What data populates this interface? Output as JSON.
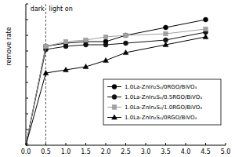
{
  "chart_data": {
    "type": "line",
    "y_label": "remove rate",
    "x": [
      0,
      0.5,
      1.0,
      1.5,
      2.0,
      2.5,
      3.5,
      4.5
    ],
    "series": [
      {
        "name": "1.0La-ZnIn₂S₄/0RGO/BiVO₄",
        "color": "#000000",
        "marker": "circle",
        "values": [
          0,
          0.63,
          0.65,
          0.66,
          0.66,
          0.7,
          0.75,
          0.8
        ]
      },
      {
        "name": "1.0La-ZnIn₂S₄/0.5RGO/BiVO₄",
        "color": "#111111",
        "marker": "circle",
        "values": [
          0,
          0.61,
          0.63,
          0.64,
          0.64,
          0.65,
          0.67,
          0.72
        ]
      },
      {
        "name": "1.0La-ZnIn₂S₄/1.0RGO/BiVO₄",
        "color": "#a0a0a0",
        "marker": "square",
        "values": [
          0,
          0.63,
          0.66,
          0.67,
          0.69,
          0.7,
          0.71,
          0.74
        ]
      },
      {
        "name": "1.0La-ZnIn₂S₄/0RGO/BiVO₄",
        "color": "#000000",
        "marker": "triangle",
        "values": [
          0,
          0.46,
          0.48,
          0.5,
          0.54,
          0.59,
          0.64,
          0.69
        ]
      }
    ],
    "xlim": [
      0,
      5.0
    ],
    "xticks": [
      {
        "value": 0,
        "label": "0.0"
      },
      0.5,
      {
        "value": 1,
        "label": "1.0"
      },
      1.5,
      {
        "value": 2,
        "label": "2.0"
      },
      2.5,
      {
        "value": 3,
        "label": "3.0"
      },
      3.5,
      {
        "value": 4,
        "label": "4.0"
      },
      4.5,
      {
        "value": 5,
        "label": "5.0"
      }
    ],
    "ylim": [
      0,
      0.9
    ],
    "yticks": [
      0,
      0.1,
      0.2,
      0.3,
      0.4,
      0.5,
      0.6,
      0.7,
      0.8,
      0.9
    ],
    "tick_labels": "x",
    "annotations": [
      {
        "x": 0.5,
        "before": "dark",
        "after": "light on"
      }
    ],
    "legend": "lower right",
    "grid": false
  }
}
